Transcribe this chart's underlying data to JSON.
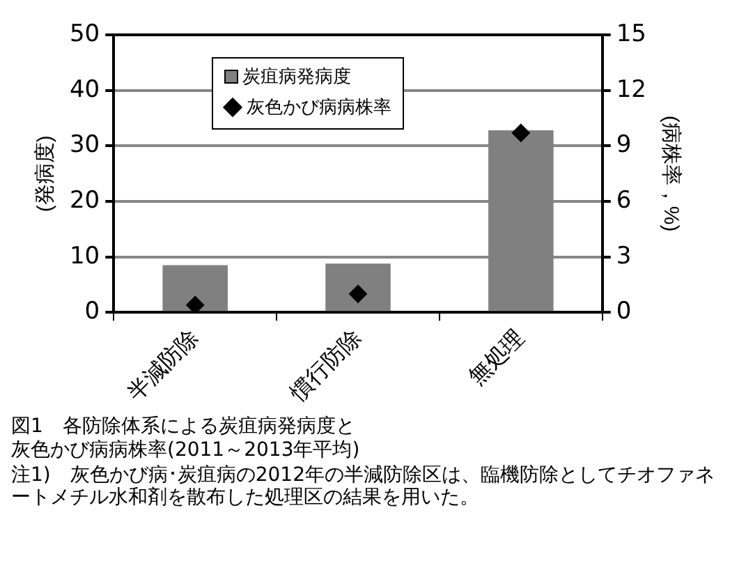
{
  "chart_data": {
    "type": "bar",
    "title": "図1　各防除体系による炭疽病発病度と灰色かび病病株率(2011～2013年平均)",
    "ylabel": "(発病度)",
    "y2label": "(病株率，%)",
    "categories": [
      "半減防除",
      "慣行防除",
      "無処理"
    ],
    "series": [
      {
        "name": "炭疽病発病度",
        "color": "#808080",
        "values": [
          8.5,
          8.8,
          32.8
        ]
      },
      {
        "name": "灰色かび病病株率",
        "type": "scatter",
        "axis": "y2",
        "color": "#000000",
        "values": [
          0.4,
          1.0,
          9.7
        ]
      }
    ],
    "ylim": [
      0,
      50
    ],
    "yticks": [
      0,
      10,
      20,
      30,
      40,
      50
    ],
    "y2lim": [
      0,
      15
    ],
    "y2ticks": [
      0,
      3,
      6,
      9,
      12,
      15
    ],
    "grid": "y",
    "legend": "top",
    "marker": "diamond",
    "annotations": [
      "注1)　灰色かび病･炭疽病の2012年の半減防除区は、臨機防除としてチオファネートメチル水和剤を散布した処理区の結果を用いた。"
    ]
  }
}
